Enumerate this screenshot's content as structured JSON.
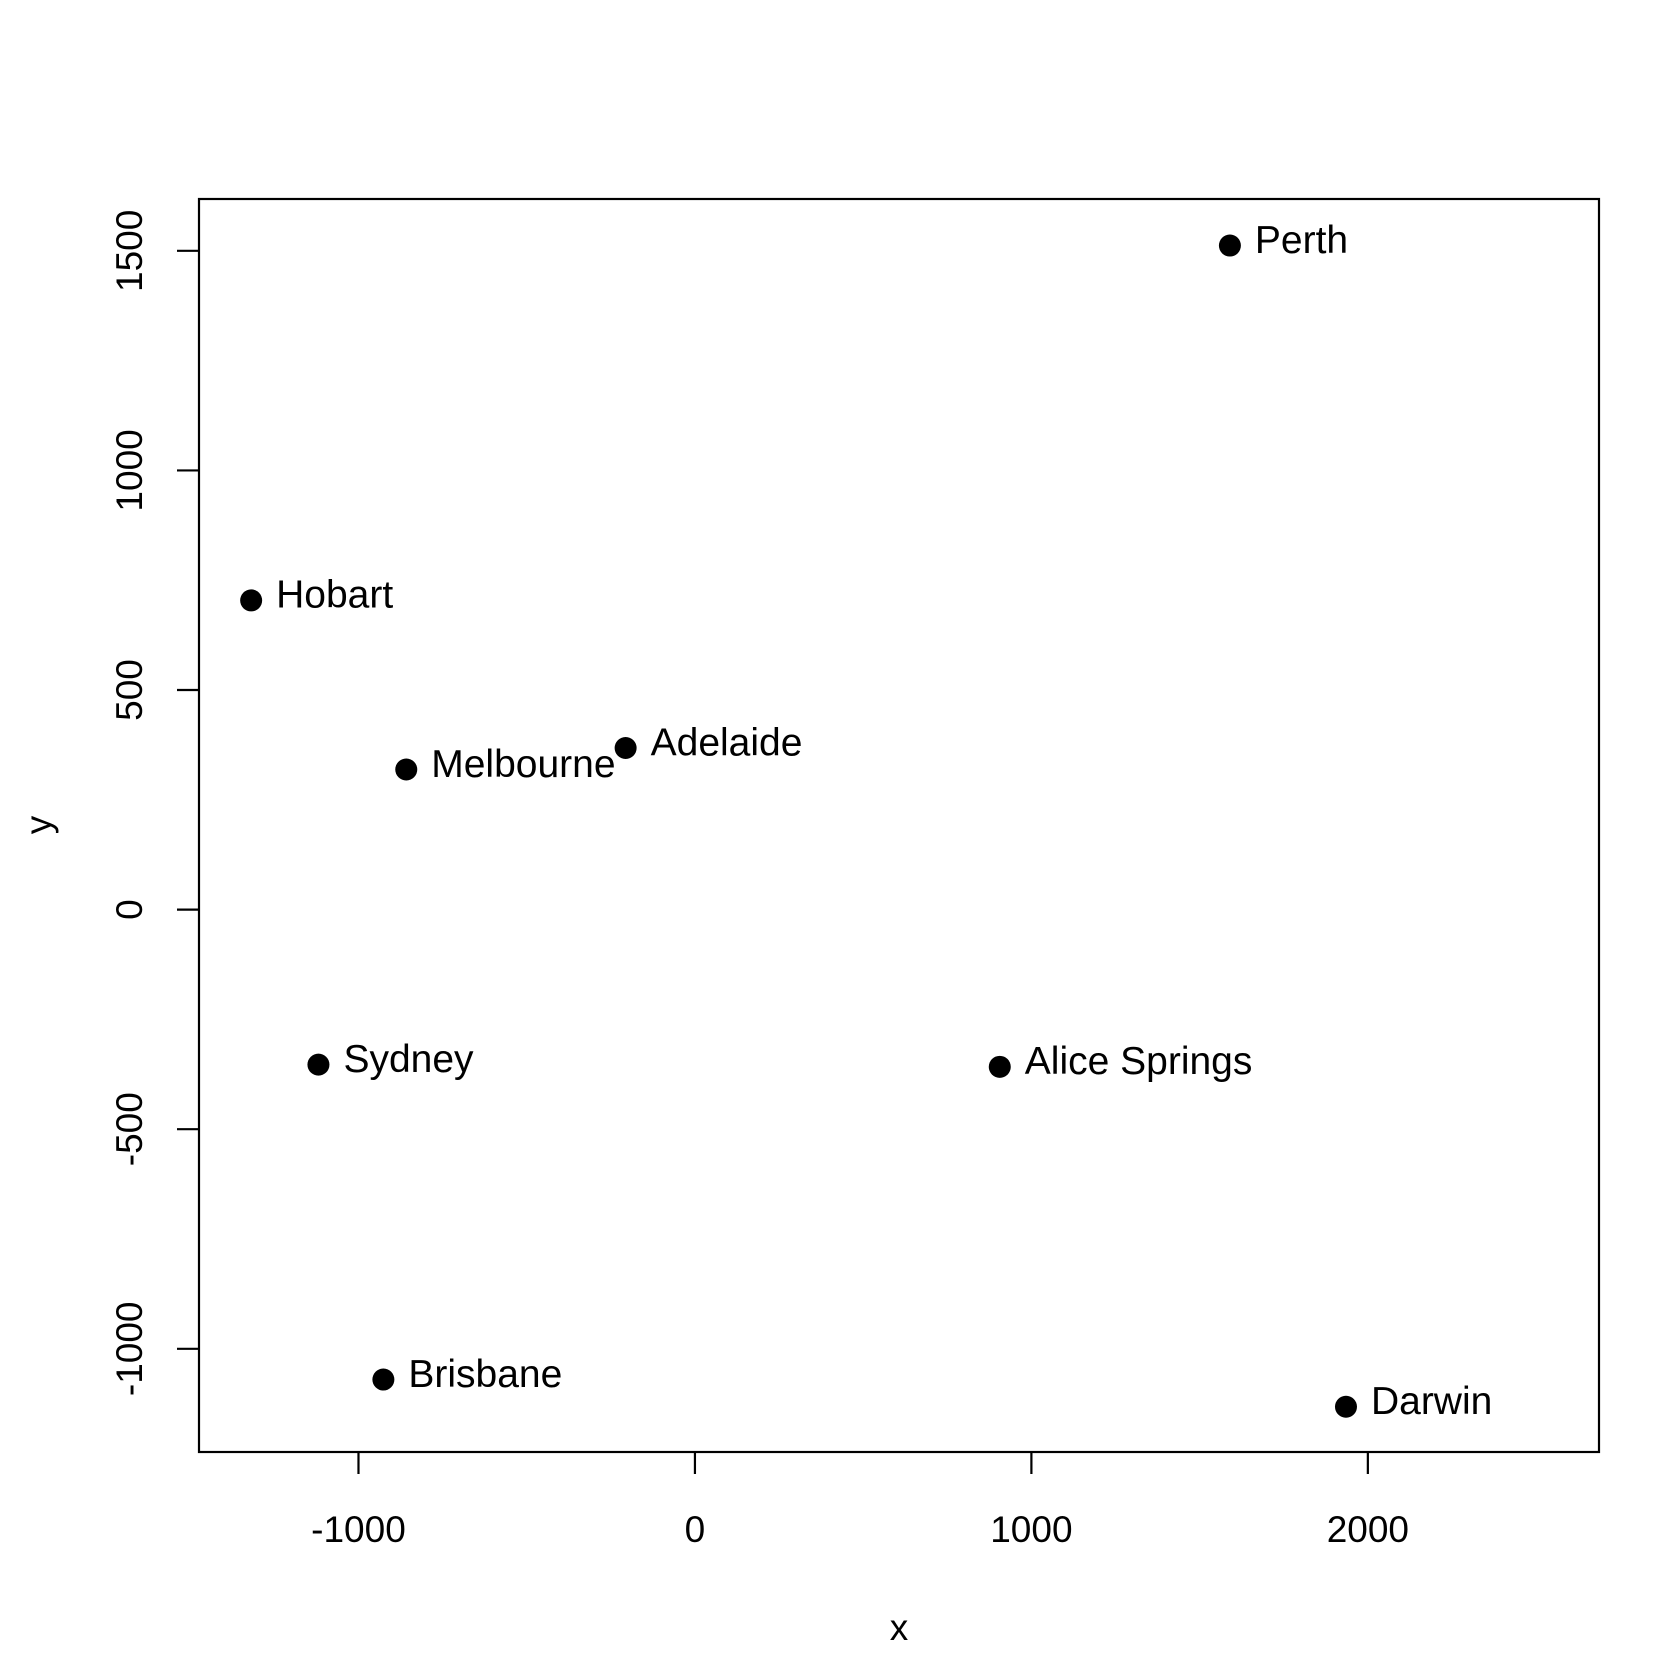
{
  "chart_data": {
    "type": "scatter",
    "x_label": "x",
    "y_label": "y",
    "labels": [
      "Perth",
      "Hobart",
      "Melbourne",
      "Adelaide",
      "Sydney",
      "Alice Springs",
      "Brisbane",
      "Darwin"
    ],
    "x": [
      1590,
      -1319,
      -858,
      -206,
      -1119,
      906,
      -926,
      1935
    ],
    "y": [
      1512,
      704,
      319,
      368,
      -353,
      -358,
      -1070,
      -1132
    ],
    "color": "#000000",
    "xlim": [
      -1474,
      2687
    ],
    "ylim": [
      -1235,
      1618
    ],
    "xticks": [
      -1000,
      0,
      1000,
      2000
    ],
    "yticks": [
      -1000,
      -500,
      0,
      500,
      1000,
      1500
    ]
  }
}
